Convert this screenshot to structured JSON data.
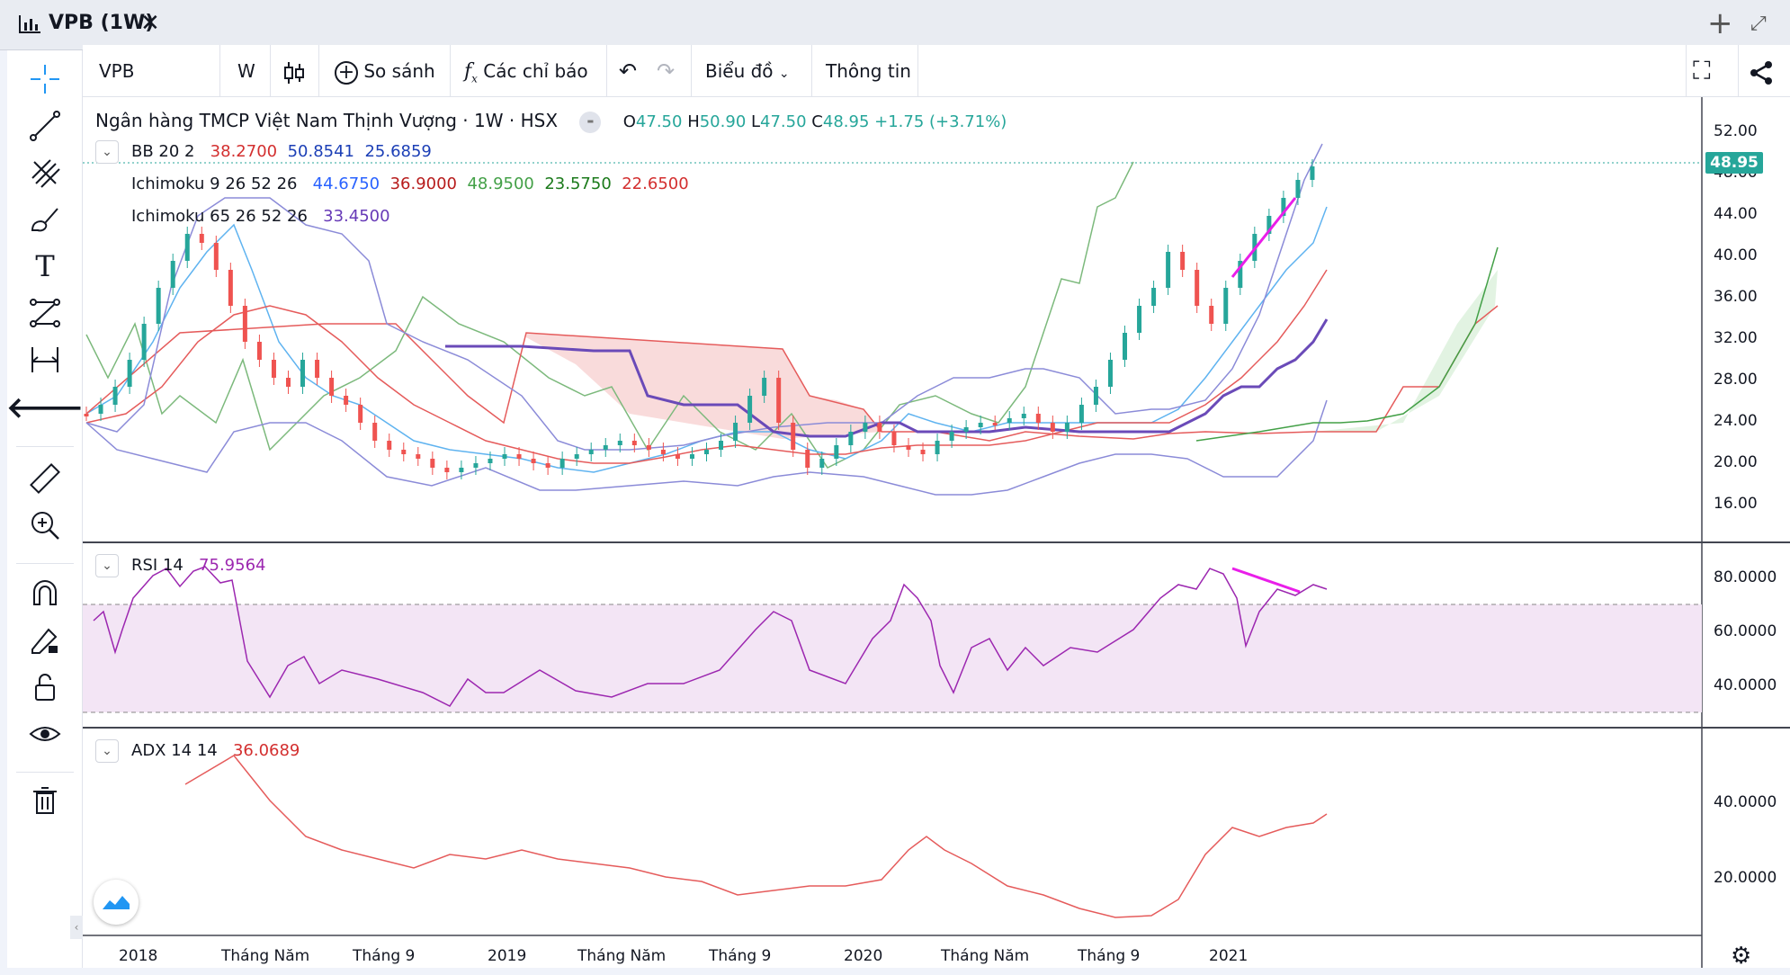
{
  "window": {
    "title": "VPB (1W)"
  },
  "toolbar": {
    "symbol": "VPB",
    "interval": "W",
    "compare": "So sánh",
    "indicators": "Các chỉ báo",
    "chart_type": "Biểu đồ",
    "info": "Thông tin"
  },
  "main": {
    "name": "Ngân hàng TMCP Việt Nam Thịnh Vượng · 1W · HSX",
    "ohlc": {
      "o_label": "O",
      "o": "47.50",
      "h_label": "H",
      "h": "50.90",
      "l_label": "L",
      "l": "47.50",
      "c_label": "C",
      "c": "48.95",
      "chg": "+1.75 (+3.71%)"
    },
    "bb": {
      "label": "BB 20 2",
      "v1": "38.2700",
      "v2": "50.8541",
      "v3": "25.6859"
    },
    "ichi1": {
      "label": "Ichimoku 9 26 52 26",
      "v1": "44.6750",
      "v2": "36.9000",
      "v3": "48.9500",
      "v4": "23.5750",
      "v5": "22.6500"
    },
    "ichi2": {
      "label": "Ichimoku 65 26 52 26",
      "v1": "33.4500"
    },
    "last_price": "48.95",
    "yaxis": [
      "52.00",
      "48.00",
      "44.00",
      "40.00",
      "36.00",
      "32.00",
      "28.00",
      "24.00",
      "20.00",
      "16.00"
    ]
  },
  "rsi": {
    "label": "RSI 14",
    "value": "75.9564",
    "yaxis": [
      "80.0000",
      "60.0000",
      "40.0000"
    ]
  },
  "adx": {
    "label": "ADX 14 14",
    "value": "36.0689",
    "yaxis": [
      "40.0000",
      "20.0000"
    ]
  },
  "xaxis": [
    "2018",
    "Tháng Năm",
    "Tháng 9",
    "2019",
    "Tháng Năm",
    "Tháng 9",
    "2020",
    "Tháng Năm",
    "Tháng 9",
    "2021"
  ],
  "colors": {
    "up": "#26a69a",
    "down": "#ef5350",
    "bb_upper": "#8b8bd8",
    "rsi": "#9c27b0",
    "adx": "#e55b5b",
    "drawing": "#e91ee9"
  }
}
